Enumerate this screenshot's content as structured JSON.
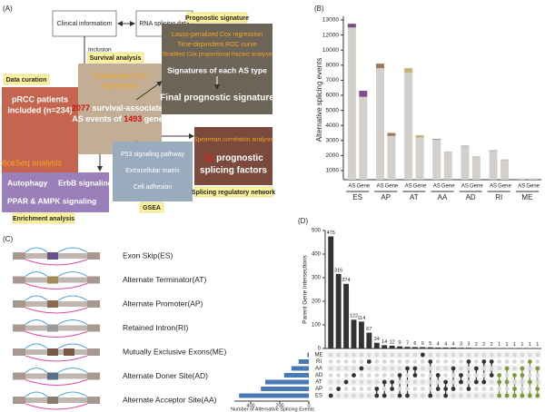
{
  "panel_labels": [
    "(A)",
    "(B)",
    "(C)",
    "(D)"
  ],
  "workflow": {
    "clinical": "Clinical informatiom",
    "rna": "RNA splicing data",
    "inclusion": [
      "Inclusion",
      "criteria"
    ],
    "data_curation": "Data curation",
    "patients": [
      "pRCC patients",
      "included (n=234)"
    ],
    "spliceseq": "SpliceSeq analysis",
    "survival_tag": "Survival analysis",
    "univariate": [
      "Univariate Cox",
      "regression"
    ],
    "events_count": 2077,
    "events_text": "survival-associated",
    "events_text2": "AS events of",
    "genes_count": 1493,
    "genes_word": "genes",
    "prognostic_tag": "Prognostic signature",
    "methods": [
      "Lasso-penalized Cox regression",
      "Time-dependent ROC curve",
      "Stratified Cox proportional hazard analysis"
    ],
    "signatures": "Signatures of each AS type",
    "final": "Final prognostic signature",
    "gsea_items": [
      "P53 signaling pathway",
      "Extracellular matrix",
      "Cell adhesion"
    ],
    "gsea_tag": "GSEA",
    "spearman": "Spearman correlation analysis",
    "factors_count": 12,
    "factors_text": "prognostic",
    "factors_text2": "splicing factors",
    "network_tag": "Splicing regulatory network",
    "enrichment_items": [
      "Autophagy",
      "ErbB signaling",
      "PPAR  &  AMPK signaling"
    ],
    "enrichment_tag": "Enrichment analysis"
  },
  "as_types": [
    "Exon Skip(ES)",
    "Alternate Terminator(AT)",
    "Alternate Promoter(AP)",
    "Retained Intron(RI)",
    "Mutually Exclusive Exons(ME)",
    "Alternate Doner Site(AD)",
    "Alternate Acceptor Site(AA)"
  ],
  "chart_data": [
    {
      "type": "bar",
      "y_label": "Alternative splicing events",
      "categories": [
        "ES",
        "AP",
        "AT",
        "AA",
        "AD",
        "RI",
        "ME"
      ],
      "subgroups": [
        "AS",
        "Gene"
      ],
      "series": [
        {
          "color": "#d3cfcb",
          "values": [
            [
              12500,
              5900
            ],
            [
              7800,
              3300
            ],
            [
              7500,
              3200
            ],
            [
              3050,
              2200
            ],
            [
              2600,
              1900
            ],
            [
              2300,
              1700
            ],
            [
              150,
              140
            ]
          ]
        },
        {
          "colors": [
            "#7b4f8c",
            "#a07860",
            "#c8b07a",
            "#a89a90",
            "#b0a4a0",
            "#c0a8a8",
            "#d89ab0"
          ],
          "values": [
            [
              250,
              400
            ],
            [
              400,
              200
            ],
            [
              300,
              150
            ],
            [
              60,
              40
            ],
            [
              60,
              40
            ],
            [
              60,
              40
            ],
            [
              5,
              5
            ]
          ]
        }
      ],
      "ylim": [
        0,
        13000
      ],
      "yticks": [
        1000,
        2000,
        3000,
        4000,
        5000,
        6000,
        7000,
        8000,
        10000,
        12000,
        13000
      ]
    },
    {
      "type": "upset",
      "y_label": "Parent Gene Intersections",
      "values": [
        475,
        316,
        274,
        122,
        114,
        67,
        24,
        14,
        12,
        9,
        7,
        6,
        6,
        5,
        4,
        4,
        4,
        3,
        3,
        2,
        2,
        2,
        1,
        1,
        1,
        1,
        1,
        1
      ],
      "colors": [
        "#333333",
        "#333333",
        "#333333",
        "#333333",
        "#333333",
        "#333333",
        "#333333",
        "#333333",
        "#333333",
        "#333333",
        "#333333",
        "#333333",
        "#333333",
        "#333333",
        "#333333",
        "#333333",
        "#333333",
        "#333333",
        "#333333",
        "#333333",
        "#333333",
        "#333333",
        "#7a9a3a",
        "#7a9a3a",
        "#7a9a3a",
        "#7a9a3a",
        "#7a9a3a",
        "#7a9a3a"
      ],
      "intersections": [
        [
          6
        ],
        [
          5
        ],
        [
          4
        ],
        [
          3
        ],
        [
          2
        ],
        [
          1
        ],
        [
          5,
          6
        ],
        [
          4,
          6
        ],
        [
          4,
          5
        ],
        [
          3,
          6
        ],
        [
          2,
          6
        ],
        [
          2,
          3
        ],
        [
          0
        ],
        [
          1,
          6
        ],
        [
          3,
          5
        ],
        [
          4,
          5,
          6
        ],
        [
          2,
          5
        ],
        [
          3,
          4
        ],
        [
          1,
          5
        ],
        [
          2,
          4
        ],
        [
          1,
          4
        ],
        [
          1,
          3
        ],
        [
          3,
          4,
          6
        ],
        [
          2,
          4,
          6
        ],
        [
          3,
          5,
          6
        ],
        [
          2,
          3,
          6
        ],
        [
          1,
          4,
          6
        ],
        [
          2,
          5,
          6
        ]
      ],
      "ylim": [
        0,
        500
      ],
      "yticks": [
        0,
        100,
        200,
        300,
        400,
        500
      ],
      "sets": [
        "ME",
        "RI",
        "AA",
        "AD",
        "AT",
        "AP",
        "ES"
      ],
      "set_sizes": [
        10,
        70,
        120,
        170,
        300,
        330,
        480
      ],
      "set_color": "#4a7ab5",
      "set_xlim": [
        0,
        500
      ],
      "set_xticks": [
        400,
        200,
        0
      ],
      "set_x_label": "Number of Alternative Splicing Events"
    }
  ]
}
